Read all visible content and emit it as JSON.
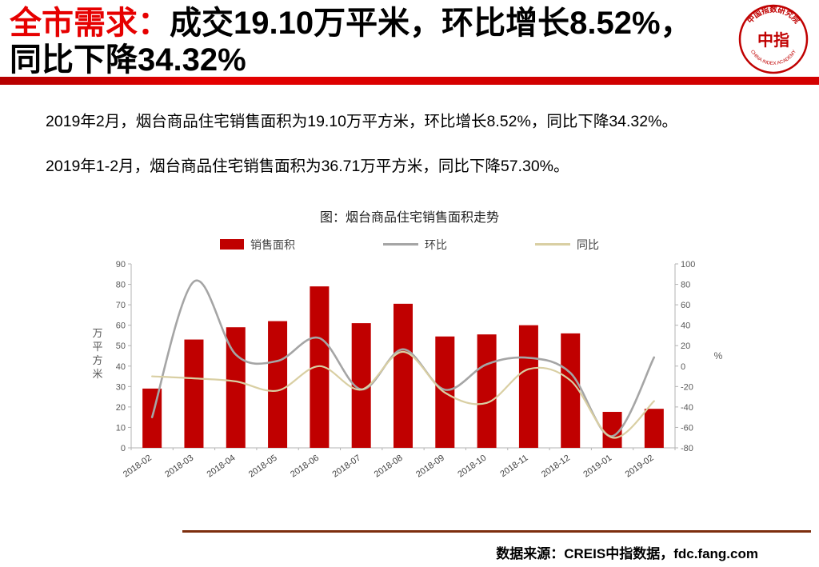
{
  "header": {
    "title_prefix": "全市需求：",
    "title_line1": "成交19.10万平米，环比增长8.52%，",
    "title_line2": "同比下降34.32%",
    "logo": {
      "ring_top": "中国指数研究院",
      "center": "中指",
      "ring_bottom": "CHINA INDEX ACADEMY"
    }
  },
  "paragraphs": [
    "2019年2月，烟台商品住宅销售面积为19.10万平方米，环比增长8.52%，同比下降34.32%。",
    "2019年1-2月，烟台商品住宅销售面积为36.71万平方米，同比下降57.30%。"
  ],
  "chart_data": {
    "type": "bar",
    "title": "图：烟台商品住宅销售面积走势",
    "categories": [
      "2018-02",
      "2018-03",
      "2018-04",
      "2018-05",
      "2018-06",
      "2018-07",
      "2018-08",
      "2018-09",
      "2018-10",
      "2018-11",
      "2018-12",
      "2019-01",
      "2019-02"
    ],
    "series": [
      {
        "name": "销售面积",
        "type": "bar",
        "axis": "left",
        "color": "#c00000",
        "values": [
          29,
          53,
          59,
          62,
          79,
          61,
          70.5,
          54.5,
          55.5,
          60,
          56,
          17.6,
          19.1
        ]
      },
      {
        "name": "环比",
        "type": "line",
        "axis": "right",
        "color": "#a5a5a5",
        "values": [
          -50,
          82.8,
          11.3,
          5.1,
          27.4,
          -22.8,
          16.4,
          -23.2,
          1.8,
          8.1,
          -6.7,
          -68.6,
          8.52
        ]
      },
      {
        "name": "同比",
        "type": "line",
        "axis": "right",
        "color": "#d9cfa3",
        "values": [
          -10,
          -12,
          -15,
          -24,
          0,
          -23,
          14,
          -26,
          -36,
          -3,
          -14,
          -70,
          -34.32
        ]
      }
    ],
    "left_axis": {
      "label": "万平方米",
      "min": 0,
      "max": 90,
      "step": 10
    },
    "right_axis": {
      "label": "%",
      "min": -80,
      "max": 100,
      "step": 20
    },
    "legend_position": "top",
    "grid": false
  },
  "footer": {
    "source": "数据来源：CREIS中指数据，fdc.fang.com"
  }
}
